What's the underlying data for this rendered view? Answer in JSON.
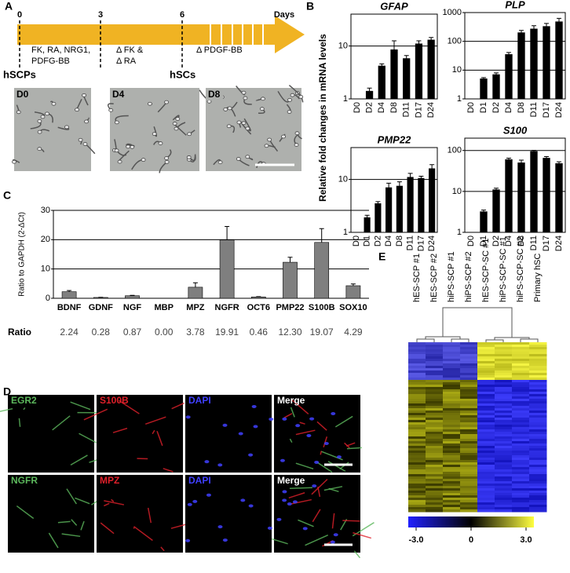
{
  "panel_labels": [
    "A",
    "B",
    "C",
    "D",
    "E"
  ],
  "timeline": {
    "days": [
      "0",
      "3",
      "6"
    ],
    "unit": "Days",
    "conditions": [
      [
        "FK, RA, NRG1,",
        "PDFG-BB"
      ],
      [
        "Δ FK &",
        "Δ RA"
      ],
      [
        "Δ PDGF-BB"
      ]
    ],
    "start": "hSCPs",
    "end": "hSCs",
    "images": [
      "D0",
      "D4",
      "D8"
    ]
  },
  "expression_axis_label": "Relative fold changes in mRNA levels",
  "chart_data": [
    {
      "type": "bar",
      "title": "GFAP",
      "categories": [
        "D0",
        "D2",
        "D4",
        "D8",
        "D11",
        "D17",
        "D24"
      ],
      "values": [
        1,
        1.4,
        4.2,
        8.5,
        5.8,
        11,
        13
      ],
      "errors": [
        0,
        0.2,
        0.4,
        4,
        0.8,
        1.5,
        1.5
      ],
      "color": "#000000",
      "log_scale": true,
      "ylim": [
        1,
        40
      ],
      "yticks": [
        1,
        10
      ],
      "grid": true,
      "xtick_rotation": 90
    },
    {
      "type": "bar",
      "title": "PLP",
      "categories": [
        "D0",
        "D1",
        "D2",
        "D4",
        "D8",
        "D11",
        "D17",
        "D24"
      ],
      "values": [
        1,
        5,
        7,
        35,
        200,
        270,
        330,
        480
      ],
      "errors": [
        0,
        0.5,
        1,
        6,
        40,
        80,
        90,
        150
      ],
      "color": "#000000",
      "log_scale": true,
      "ylim": [
        1,
        1000
      ],
      "yticks": [
        1,
        10,
        100,
        1000
      ],
      "grid": true,
      "xtick_rotation": 90
    },
    {
      "type": "bar",
      "title": "PMP22",
      "categories": [
        "D0",
        "D1",
        "D2",
        "D4",
        "D8",
        "D11",
        "D17",
        "D24"
      ],
      "values": [
        1,
        1.9,
        3.5,
        7,
        7.5,
        11,
        10.5,
        16
      ],
      "errors": [
        0,
        0.2,
        0.3,
        1.5,
        1.5,
        2,
        1,
        3
      ],
      "color": "#000000",
      "log_scale": true,
      "ylim": [
        1,
        40
      ],
      "yticks": [
        1,
        10
      ],
      "grid": true,
      "xtick_rotation": 90
    },
    {
      "type": "bar",
      "title": "S100",
      "categories": [
        "D0",
        "D1",
        "D2",
        "D4",
        "D8",
        "D11",
        "D17",
        "D24"
      ],
      "values": [
        1,
        3.2,
        11,
        60,
        50,
        95,
        65,
        48
      ],
      "errors": [
        0,
        0.3,
        1,
        5,
        8,
        6,
        6,
        5
      ],
      "color": "#000000",
      "log_scale": true,
      "ylim": [
        1,
        200
      ],
      "yticks": [
        1,
        10,
        100
      ],
      "grid": true,
      "xtick_rotation": 90
    },
    {
      "type": "bar",
      "ylabel": "Ratio to GAPDH (2-ΔCt)",
      "categories": [
        "BDNF",
        "GDNF",
        "NGF",
        "MBP",
        "MPZ",
        "NGFR",
        "OCT6",
        "PMP22",
        "S100B",
        "SOX10"
      ],
      "values": [
        2.24,
        0.28,
        0.87,
        0,
        3.78,
        19.91,
        0.46,
        12.3,
        19.07,
        4.29
      ],
      "value_labels": [
        "2.24",
        "0.28",
        "0.87",
        "0.00",
        "3.78",
        "19.91",
        "0.46",
        "12.30",
        "19.07",
        "4.29"
      ],
      "value_row_label": "Ratio",
      "errors": [
        0.4,
        0.05,
        0.15,
        0,
        1.5,
        4.6,
        0.1,
        1.7,
        4.7,
        0.6
      ],
      "color": "#7f7f7f",
      "log_scale": false,
      "ylim": [
        0,
        30
      ],
      "yticks": [
        0,
        10,
        20,
        30
      ],
      "grid": true
    }
  ],
  "immunostaining": [
    [
      {
        "label": "EGR2",
        "color": "#5cb85c"
      },
      {
        "label": "S100B",
        "color": "#e0202a"
      },
      {
        "label": "DAPI",
        "color": "#4040ff"
      },
      {
        "label": "Merge",
        "color": "#ffffff"
      }
    ],
    [
      {
        "label": "NGFR",
        "color": "#5cb85c"
      },
      {
        "label": "MPZ",
        "color": "#e0202a"
      },
      {
        "label": "DAPI",
        "color": "#4040ff"
      },
      {
        "label": "Merge",
        "color": "#ffffff"
      }
    ]
  ],
  "heatmap": {
    "columns": [
      "hES-SCP #1",
      "hES-SCP #2",
      "hiPS-SCP #1",
      "hiPS-SCP #2",
      "hES-SCP-SC #1",
      "hiPS-SCP-SC #1",
      "hiPS-SCP-SC #2",
      "Primary hSC"
    ],
    "clim": [
      -3,
      3
    ],
    "colorbar_ticks": [
      {
        "value": -3,
        "label": "-3.0"
      },
      0,
      {
        "value": 3,
        "label": "3.0"
      }
    ]
  }
}
